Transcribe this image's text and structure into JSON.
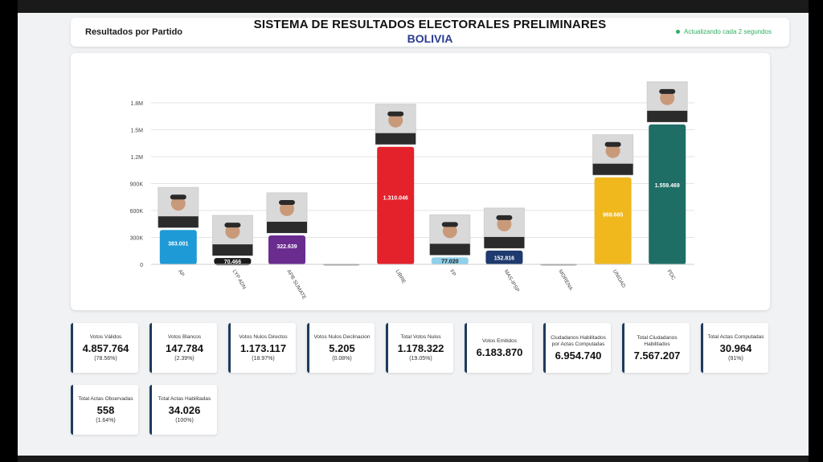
{
  "header": {
    "left_title": "Resultados por Partido",
    "main_title": "SISTEMA DE RESULTADOS ELECTORALES PRELIMINARES",
    "subtitle": "BOLIVIA",
    "status": "Actualizando cada 2 segundos"
  },
  "chart_data": {
    "type": "bar",
    "title": "",
    "xlabel": "",
    "ylabel": "",
    "ylim": [
      0,
      1800000
    ],
    "y_ticks": [
      "0",
      "300K",
      "600K",
      "900K",
      "1.2M",
      "1.5M",
      "1.8M"
    ],
    "categories": [
      "AP",
      "LYP ADN",
      "APB SUMATE",
      "",
      "LIBRE",
      "FP",
      "MAS-IPSP",
      "MORENA",
      "UNIDAD",
      "PDC"
    ],
    "values": [
      383001,
      70466,
      322639,
      6000,
      1310046,
      77020,
      152816,
      6000,
      969665,
      1559469
    ],
    "value_labels": [
      "383.001",
      "70.466",
      "322.639",
      "",
      "1.310.046",
      "77.020",
      "152.816",
      "",
      "969.665",
      "1.559.469"
    ],
    "colors": [
      "#1e9ad6",
      "#1a1a1a",
      "#6a2c8f",
      "#888888",
      "#e3222b",
      "#8fd0ea",
      "#1e3a6e",
      "#888888",
      "#f0b81d",
      "#1f6e66"
    ],
    "label_colors": [
      "#ffffff",
      "#ffffff",
      "#ffffff",
      "#ffffff",
      "#ffffff",
      "#1a1a1a",
      "#ffffff",
      "#ffffff",
      "#ffffff",
      "#ffffff"
    ],
    "has_photo": [
      true,
      true,
      true,
      false,
      true,
      true,
      true,
      false,
      true,
      true
    ],
    "grid": true
  },
  "stats_row1": [
    {
      "label": "Votos Válidos",
      "value": "4.857.764",
      "pct": "(78.56%)"
    },
    {
      "label": "Votos Blancos",
      "value": "147.784",
      "pct": "(2.39%)"
    },
    {
      "label": "Votos Nulos Directos",
      "value": "1.173.117",
      "pct": "(18.97%)"
    },
    {
      "label": "Votos Nulos Declinacion",
      "value": "5.205",
      "pct": "(0.08%)"
    },
    {
      "label": "Total Votos Nulos",
      "value": "1.178.322",
      "pct": "(19.05%)"
    },
    {
      "label": "Votos Emitidos",
      "value": "6.183.870",
      "pct": ""
    },
    {
      "label": "Ciudadanos Habilitados por Actas Computadas",
      "value": "6.954.740",
      "pct": ""
    },
    {
      "label": "Total Ciudadanos Habilitados",
      "value": "7.567.207",
      "pct": ""
    },
    {
      "label": "Total Actas Computadas",
      "value": "30.964",
      "pct": "(91%)"
    }
  ],
  "stats_row2": [
    {
      "label": "Total Actas Observadas",
      "value": "558",
      "pct": "(1.64%)"
    },
    {
      "label": "Total Actas Habilitadas",
      "value": "34.026",
      "pct": "(100%)"
    }
  ]
}
